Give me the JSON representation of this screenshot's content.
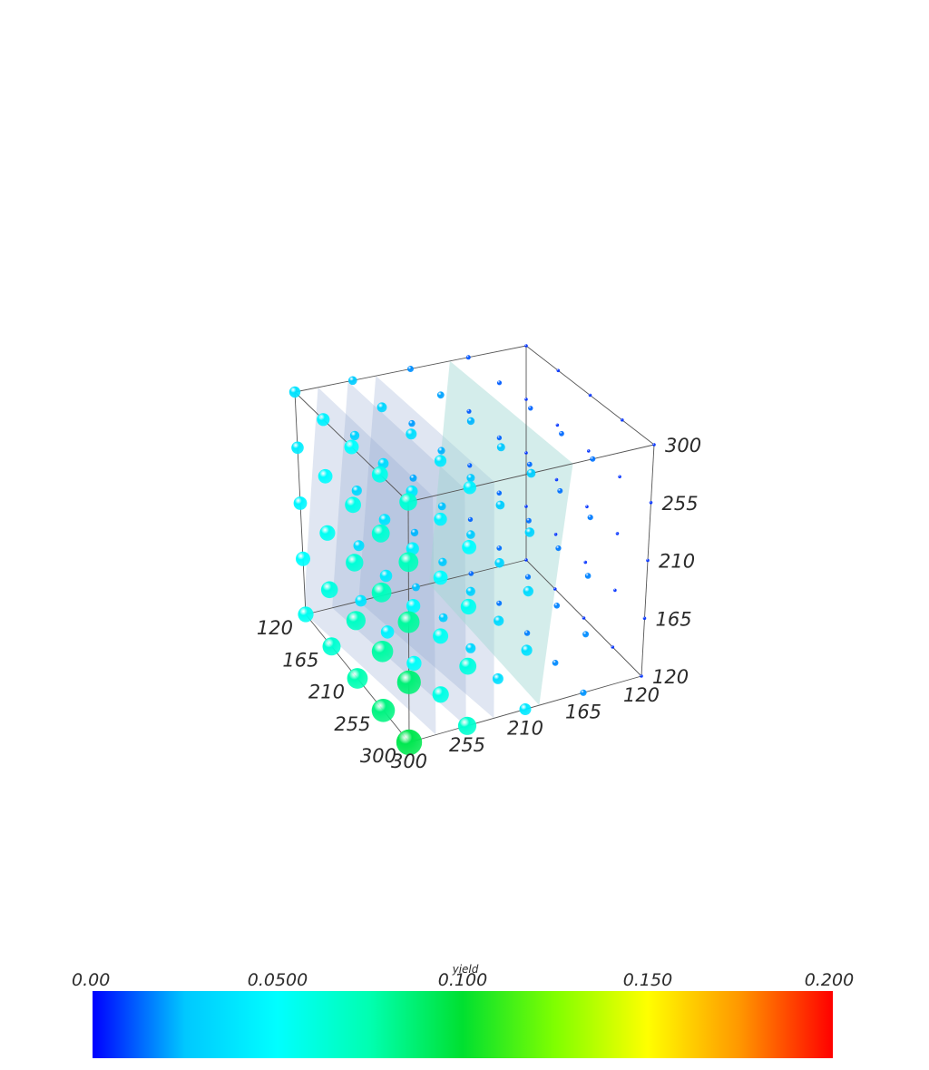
{
  "chart_data": {
    "type": "scatter",
    "subtype": "3d-scatter-with-isosurfaces",
    "axes": {
      "x": {
        "ticks": [
          "120",
          "165",
          "210",
          "255",
          "300"
        ],
        "range": [
          120,
          300
        ]
      },
      "y": {
        "ticks": [
          "120",
          "165",
          "210",
          "255",
          "300"
        ],
        "range": [
          120,
          300
        ]
      },
      "z": {
        "ticks": [
          "120",
          "165",
          "210",
          "255",
          "300"
        ],
        "range": [
          120,
          300
        ]
      }
    },
    "grid_levels": [
      120,
      165,
      210,
      255,
      300
    ],
    "isosurface_levels": [
      0.02,
      0.035,
      0.05,
      0.085
    ],
    "isosurface_color": "#8ea4d2",
    "near_surface_color": "#9fd6d2",
    "colorbar": {
      "title": "yield",
      "min": 0.0,
      "max": 0.2,
      "tick_values": [
        0.0,
        0.05,
        0.1,
        0.15,
        0.2
      ],
      "tick_labels": [
        "0.00",
        "0.0500",
        "0.100",
        "0.150",
        "0.200"
      ],
      "colormap": [
        "#0000ff",
        "#00c8ff",
        "#00ffff",
        "#00ffb0",
        "#00e030",
        "#80ff00",
        "#ffff00",
        "#ff9600",
        "#ff0000"
      ]
    },
    "marker_size_encodes": "yield",
    "legend": "bottom"
  }
}
